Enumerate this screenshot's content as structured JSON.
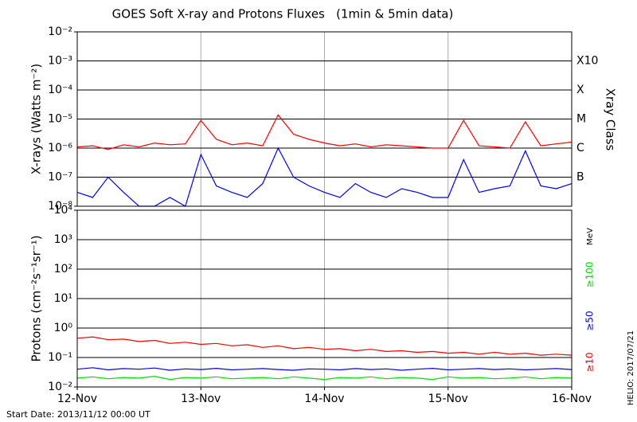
{
  "title": "GOES Soft X-ray and Protons Fluxes   (1min & 5min data)",
  "start_date": "Start Date: 2013/11/12 00:00 UT",
  "credit": "HELIO: 2017/07/21",
  "chart_data": [
    {
      "type": "line",
      "y_label": "X-rays (Watts m⁻²)",
      "y2_label": "Xray Class",
      "log_y": true,
      "xlim": [
        12,
        16
      ],
      "ylim": [
        1e-08,
        0.01
      ],
      "yticks": [
        {
          "value": 1e-08,
          "label": "10⁻⁸"
        },
        {
          "value": 1e-07,
          "label": "10⁻⁷"
        },
        {
          "value": 1e-06,
          "label": "10⁻⁶"
        },
        {
          "value": 1e-05,
          "label": "10⁻⁵"
        },
        {
          "value": 0.0001,
          "label": "10⁻⁴"
        },
        {
          "value": 0.001,
          "label": "10⁻³"
        },
        {
          "value": 0.01,
          "label": "10⁻²"
        }
      ],
      "class_labels": [
        {
          "value": 0.001,
          "label": "X10"
        },
        {
          "value": 0.0001,
          "label": "X"
        },
        {
          "value": 1e-05,
          "label": "M"
        },
        {
          "value": 1e-06,
          "label": "C"
        },
        {
          "value": 1e-07,
          "label": "B"
        }
      ],
      "x": [
        12,
        12.125,
        12.25,
        12.375,
        12.5,
        12.625,
        12.75,
        12.875,
        13,
        13.125,
        13.25,
        13.375,
        13.5,
        13.625,
        13.75,
        13.875,
        14,
        14.125,
        14.25,
        14.375,
        14.5,
        14.625,
        14.75,
        14.875,
        15,
        15.125,
        15.25,
        15.375,
        15.5,
        15.625,
        15.75,
        15.875,
        16
      ],
      "series": [
        {
          "color": "#ff0000",
          "values": [
            1.1e-06,
            1.2e-06,
            9e-07,
            1.3e-06,
            1.1e-06,
            1.5e-06,
            1.3e-06,
            1.4e-06,
            9e-06,
            2e-06,
            1.3e-06,
            1.5e-06,
            1.2e-06,
            1.4e-05,
            3e-06,
            2e-06,
            1.5e-06,
            1.2e-06,
            1.4e-06,
            1.1e-06,
            1.3e-06,
            1.2e-06,
            1.1e-06,
            1e-06,
            1e-06,
            9e-06,
            1.2e-06,
            1.1e-06,
            1e-06,
            8e-06,
            1.2e-06,
            1.4e-06,
            1.6e-06
          ]
        },
        {
          "color": "#0000ff",
          "values": [
            3e-08,
            2e-08,
            1e-07,
            3e-08,
            1e-08,
            1e-08,
            2e-08,
            1e-08,
            6e-07,
            5e-08,
            3e-08,
            2e-08,
            6e-08,
            1e-06,
            1e-07,
            5e-08,
            3e-08,
            2e-08,
            6e-08,
            3e-08,
            2e-08,
            4e-08,
            3e-08,
            2e-08,
            2e-08,
            4e-07,
            3e-08,
            4e-08,
            5e-08,
            8e-07,
            5e-08,
            4e-08,
            6e-08
          ]
        }
      ]
    },
    {
      "type": "line",
      "y_label": "Protons (cm⁻²s⁻¹sr⁻¹)",
      "y2_label": "MeV",
      "log_y": true,
      "xlim": [
        12,
        16
      ],
      "ylim": [
        0.01,
        10000.0
      ],
      "xticks": [
        {
          "value": 12,
          "label": "12-Nov"
        },
        {
          "value": 13,
          "label": "13-Nov"
        },
        {
          "value": 14,
          "label": "14-Nov"
        },
        {
          "value": 15,
          "label": "15-Nov"
        },
        {
          "value": 16,
          "label": "16-Nov"
        }
      ],
      "yticks": [
        {
          "value": 0.01,
          "label": "10⁻²"
        },
        {
          "value": 0.1,
          "label": "10⁻¹"
        },
        {
          "value": 1,
          "label": "10⁰"
        },
        {
          "value": 10,
          "label": "10¹"
        },
        {
          "value": 100,
          "label": "10²"
        },
        {
          "value": 1000,
          "label": "10³"
        },
        {
          "value": 10000,
          "label": "10⁴"
        }
      ],
      "threshold": 10,
      "x": [
        12,
        12.125,
        12.25,
        12.375,
        12.5,
        12.625,
        12.75,
        12.875,
        13,
        13.125,
        13.25,
        13.375,
        13.5,
        13.625,
        13.75,
        13.875,
        14,
        14.125,
        14.25,
        14.375,
        14.5,
        14.625,
        14.75,
        14.875,
        15,
        15.125,
        15.25,
        15.375,
        15.5,
        15.625,
        15.75,
        15.875,
        16
      ],
      "series": [
        {
          "name": "≥10",
          "color": "#ff0000",
          "values": [
            0.45,
            0.5,
            0.4,
            0.42,
            0.35,
            0.38,
            0.3,
            0.33,
            0.28,
            0.3,
            0.25,
            0.27,
            0.22,
            0.25,
            0.2,
            0.22,
            0.19,
            0.2,
            0.17,
            0.19,
            0.16,
            0.17,
            0.15,
            0.16,
            0.14,
            0.15,
            0.13,
            0.15,
            0.13,
            0.14,
            0.12,
            0.13,
            0.12
          ]
        },
        {
          "name": "≥50",
          "color": "#0000ff",
          "values": [
            0.04,
            0.045,
            0.038,
            0.042,
            0.04,
            0.044,
            0.037,
            0.041,
            0.039,
            0.043,
            0.038,
            0.04,
            0.042,
            0.039,
            0.037,
            0.041,
            0.04,
            0.038,
            0.042,
            0.039,
            0.041,
            0.037,
            0.04,
            0.043,
            0.038,
            0.04,
            0.042,
            0.039,
            0.041,
            0.038,
            0.04,
            0.042,
            0.039
          ]
        },
        {
          "name": "≥100",
          "color": "#00dd00",
          "values": [
            0.02,
            0.022,
            0.019,
            0.021,
            0.02,
            0.023,
            0.018,
            0.021,
            0.02,
            0.022,
            0.019,
            0.02,
            0.021,
            0.019,
            0.022,
            0.02,
            0.018,
            0.021,
            0.02,
            0.022,
            0.019,
            0.021,
            0.02,
            0.018,
            0.022,
            0.02,
            0.021,
            0.019,
            0.02,
            0.022,
            0.019,
            0.021,
            0.02
          ]
        }
      ]
    }
  ]
}
